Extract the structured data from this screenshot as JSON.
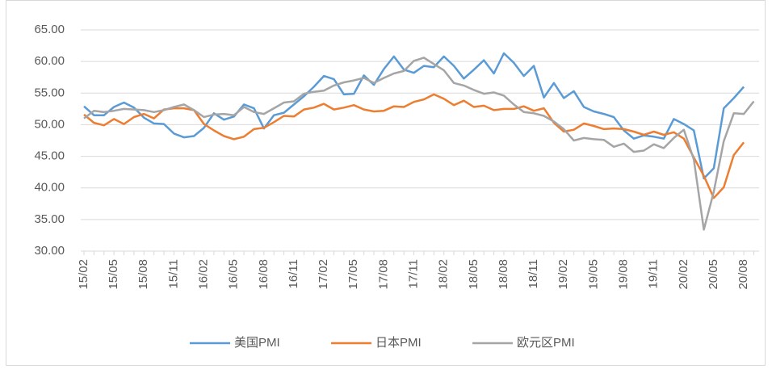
{
  "chart_data": {
    "type": "line",
    "categories": [
      "15/02",
      null,
      null,
      "15/05",
      null,
      null,
      "15/08",
      null,
      null,
      "15/11",
      null,
      null,
      "16/02",
      null,
      null,
      "16/05",
      null,
      null,
      "16/08",
      null,
      null,
      "16/11",
      null,
      null,
      "17/02",
      null,
      null,
      "17/05",
      null,
      null,
      "17/08",
      null,
      null,
      "17/11",
      null,
      null,
      "18/02",
      null,
      null,
      "18/05",
      null,
      null,
      "18/08",
      null,
      null,
      "18/11",
      null,
      null,
      "19/02",
      null,
      null,
      "19/05",
      null,
      null,
      "19/08",
      null,
      null,
      "19/11",
      null,
      null,
      "20/02",
      null,
      null,
      "20/05",
      null,
      null,
      "20/08",
      null
    ],
    "series": [
      {
        "name": "美国PMI",
        "color": "#5b9bd5",
        "values": [
          52.9,
          51.5,
          51.5,
          52.8,
          53.5,
          52.7,
          51.1,
          50.2,
          50.1,
          48.6,
          48.0,
          48.2,
          49.5,
          51.8,
          50.8,
          51.3,
          53.2,
          52.6,
          49.4,
          51.5,
          51.9,
          53.2,
          54.5,
          56.0,
          57.7,
          57.2,
          54.8,
          54.9,
          57.8,
          56.3,
          58.8,
          60.8,
          58.7,
          58.2,
          59.3,
          59.1,
          60.8,
          59.3,
          57.3,
          58.7,
          60.2,
          58.1,
          61.3,
          59.8,
          57.7,
          59.3,
          54.3,
          56.6,
          54.2,
          55.3,
          52.8,
          52.1,
          51.7,
          51.2,
          49.1,
          47.8,
          48.3,
          48.1,
          47.8,
          50.9,
          50.1,
          49.1,
          41.5,
          43.1,
          52.6,
          54.2,
          56.0,
          null
        ]
      },
      {
        "name": "日本PMI",
        "color": "#ed7d31",
        "values": [
          51.6,
          50.3,
          49.9,
          50.9,
          50.1,
          51.2,
          51.7,
          51.0,
          52.4,
          52.6,
          52.6,
          52.3,
          50.1,
          49.1,
          48.2,
          47.7,
          48.1,
          49.3,
          49.5,
          50.4,
          51.4,
          51.3,
          52.4,
          52.7,
          53.3,
          52.4,
          52.7,
          53.1,
          52.4,
          52.1,
          52.2,
          52.9,
          52.8,
          53.6,
          54.0,
          54.8,
          54.1,
          53.1,
          53.8,
          52.8,
          53.0,
          52.3,
          52.5,
          52.5,
          52.9,
          52.2,
          52.6,
          50.3,
          48.9,
          49.2,
          50.2,
          49.8,
          49.3,
          49.4,
          49.3,
          48.9,
          48.4,
          48.9,
          48.4,
          48.8,
          47.8,
          44.8,
          41.9,
          38.4,
          40.1,
          45.2,
          47.2,
          null
        ]
      },
      {
        "name": "欧元区PMI",
        "color": "#a5a5a5",
        "values": [
          51.0,
          52.2,
          52.0,
          52.2,
          52.5,
          52.4,
          52.3,
          52.0,
          52.3,
          52.8,
          53.2,
          52.3,
          51.2,
          51.6,
          51.7,
          51.5,
          52.8,
          52.0,
          51.7,
          52.6,
          53.5,
          53.7,
          54.9,
          55.2,
          55.4,
          56.2,
          56.7,
          57.0,
          57.4,
          56.6,
          57.4,
          58.1,
          58.5,
          60.1,
          60.6,
          59.6,
          58.6,
          56.6,
          56.2,
          55.5,
          54.9,
          55.1,
          54.6,
          53.2,
          52.0,
          51.8,
          51.4,
          50.5,
          49.3,
          47.5,
          47.9,
          47.7,
          47.6,
          46.5,
          47.0,
          45.7,
          45.9,
          46.9,
          46.3,
          47.9,
          49.2,
          44.5,
          33.4,
          39.4,
          47.4,
          51.8,
          51.7,
          53.7
        ]
      }
    ],
    "ylim": [
      30,
      65
    ],
    "yticks": [
      {
        "value": 30,
        "label": "30.00"
      },
      {
        "value": 35,
        "label": "35.00"
      },
      {
        "value": 40,
        "label": "40.00"
      },
      {
        "value": 45,
        "label": "45.00"
      },
      {
        "value": 50,
        "label": "50.00"
      },
      {
        "value": 55,
        "label": "55.00"
      },
      {
        "value": 60,
        "label": "60.00"
      },
      {
        "value": 65,
        "label": "65.00"
      }
    ],
    "grid": true,
    "legend": "bottom"
  }
}
